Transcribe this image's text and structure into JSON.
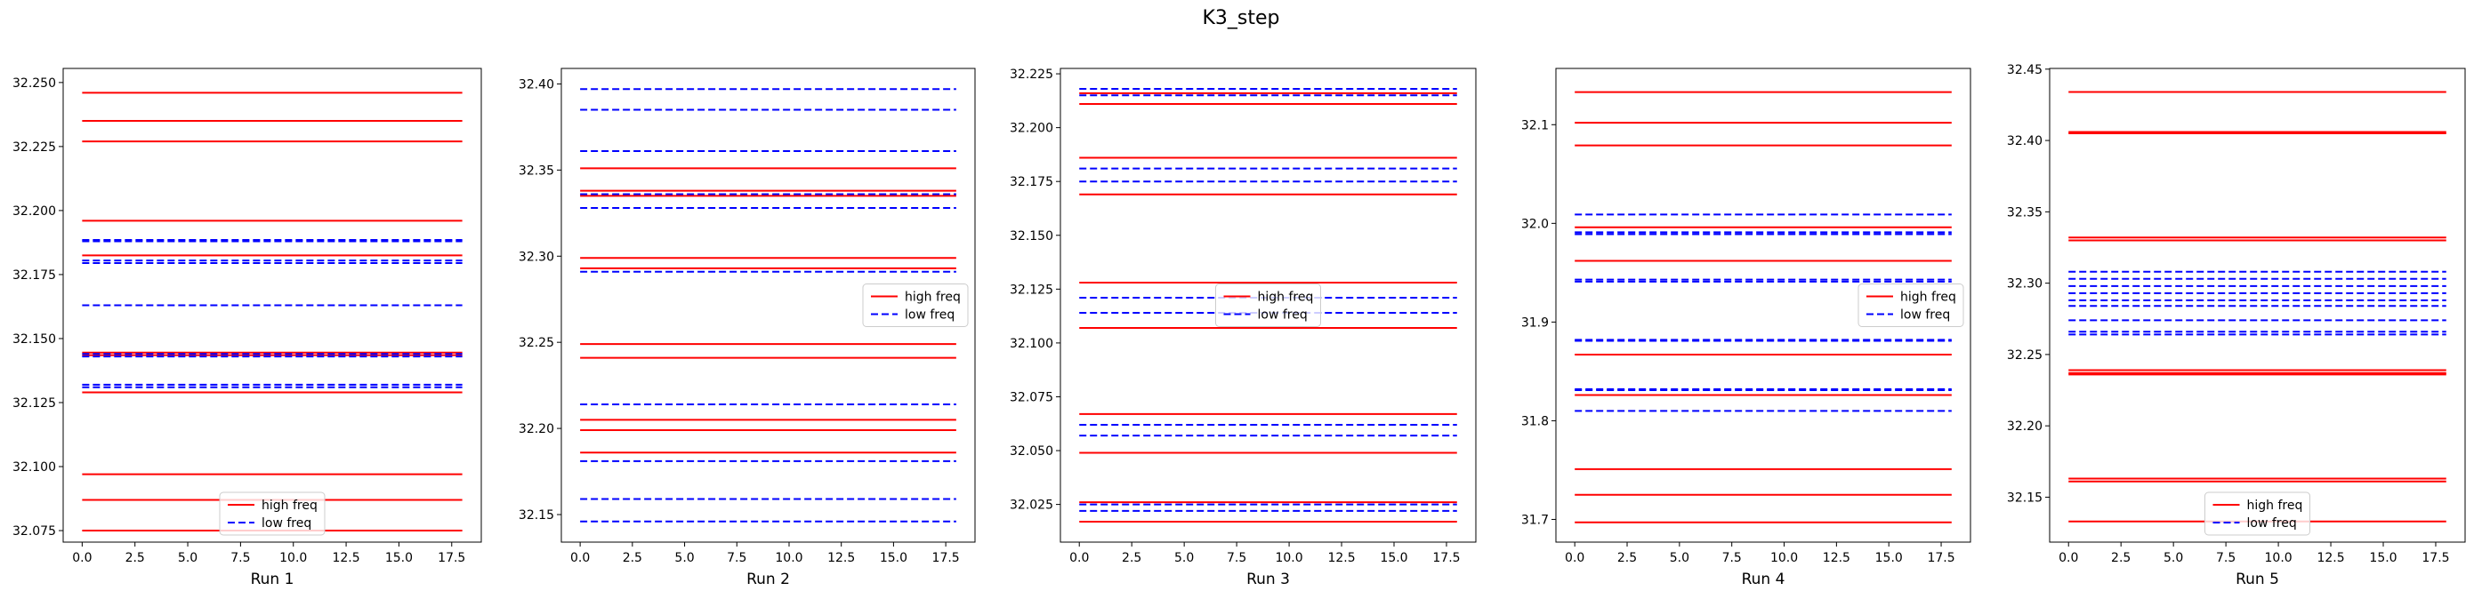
{
  "figure": {
    "suptitle": "K3_step"
  },
  "legend_labels": {
    "high": "high freq",
    "low": "low freq"
  },
  "colors": {
    "high": "#ff0000",
    "low": "#0000ff"
  },
  "chart_data": [
    {
      "type": "line",
      "xlabel": "Run 1",
      "xlim": [
        -0.9,
        18.9
      ],
      "ylim": [
        32.0705,
        32.2555
      ],
      "xticks": [
        0.0,
        2.5,
        5.0,
        7.5,
        10.0,
        12.5,
        15.0,
        17.5
      ],
      "xtick_labels": [
        "0.0",
        "2.5",
        "5.0",
        "7.5",
        "10.0",
        "12.5",
        "15.0",
        "17.5"
      ],
      "yticks": [
        32.075,
        32.1,
        32.125,
        32.15,
        32.175,
        32.2,
        32.225,
        32.25
      ],
      "ytick_labels": [
        "32.075",
        "32.100",
        "32.125",
        "32.150",
        "32.175",
        "32.200",
        "32.225",
        "32.250"
      ],
      "x_range": [
        0,
        18
      ],
      "legend_loc": "lower center",
      "series": [
        {
          "key": "high",
          "name": "high freq",
          "style": "solid",
          "levels": [
            32.246,
            32.235,
            32.227,
            32.196,
            32.1825,
            32.1445,
            32.1435,
            32.129,
            32.097,
            32.087,
            32.075
          ]
        },
        {
          "key": "low",
          "name": "low freq",
          "style": "dashed",
          "levels": [
            32.1885,
            32.188,
            32.1805,
            32.1795,
            32.163,
            32.144,
            32.143,
            32.132,
            32.131
          ]
        }
      ]
    },
    {
      "type": "line",
      "xlabel": "Run 2",
      "xlim": [
        -0.9,
        18.9
      ],
      "ylim": [
        32.134,
        32.409
      ],
      "xticks": [
        0.0,
        2.5,
        5.0,
        7.5,
        10.0,
        12.5,
        15.0,
        17.5
      ],
      "xtick_labels": [
        "0.0",
        "2.5",
        "5.0",
        "7.5",
        "10.0",
        "12.5",
        "15.0",
        "17.5"
      ],
      "yticks": [
        32.15,
        32.2,
        32.25,
        32.3,
        32.35,
        32.4
      ],
      "ytick_labels": [
        "32.15",
        "32.20",
        "32.25",
        "32.30",
        "32.35",
        "32.40"
      ],
      "x_range": [
        0,
        18
      ],
      "legend_loc": "center right",
      "series": [
        {
          "key": "high",
          "name": "high freq",
          "style": "solid",
          "levels": [
            32.351,
            32.338,
            32.335,
            32.299,
            32.293,
            32.249,
            32.241,
            32.205,
            32.199,
            32.186
          ]
        },
        {
          "key": "low",
          "name": "low freq",
          "style": "dashed",
          "levels": [
            32.397,
            32.385,
            32.361,
            32.336,
            32.328,
            32.291,
            32.214,
            32.181,
            32.159,
            32.146
          ]
        }
      ]
    },
    {
      "type": "line",
      "xlabel": "Run 3",
      "xlim": [
        -0.9,
        18.9
      ],
      "ylim": [
        32.0075,
        32.2275
      ],
      "xticks": [
        0.0,
        2.5,
        5.0,
        7.5,
        10.0,
        12.5,
        15.0,
        17.5
      ],
      "xtick_labels": [
        "0.0",
        "2.5",
        "5.0",
        "7.5",
        "10.0",
        "12.5",
        "15.0",
        "17.5"
      ],
      "yticks": [
        32.025,
        32.05,
        32.075,
        32.1,
        32.125,
        32.15,
        32.175,
        32.2,
        32.225
      ],
      "ytick_labels": [
        "32.025",
        "32.050",
        "32.075",
        "32.100",
        "32.125",
        "32.150",
        "32.175",
        "32.200",
        "32.225"
      ],
      "x_range": [
        0,
        18
      ],
      "legend_loc": "center",
      "series": [
        {
          "key": "high",
          "name": "high freq",
          "style": "solid",
          "levels": [
            32.216,
            32.211,
            32.186,
            32.169,
            32.128,
            32.107,
            32.067,
            32.049,
            32.026,
            32.017
          ]
        },
        {
          "key": "low",
          "name": "low freq",
          "style": "dashed",
          "levels": [
            32.218,
            32.215,
            32.181,
            32.175,
            32.121,
            32.114,
            32.062,
            32.057,
            32.025,
            32.022
          ]
        }
      ]
    },
    {
      "type": "line",
      "xlabel": "Run 4",
      "xlim": [
        -0.9,
        18.9
      ],
      "ylim": [
        31.677,
        32.157
      ],
      "xticks": [
        0.0,
        2.5,
        5.0,
        7.5,
        10.0,
        12.5,
        15.0,
        17.5
      ],
      "xtick_labels": [
        "0.0",
        "2.5",
        "5.0",
        "7.5",
        "10.0",
        "12.5",
        "15.0",
        "17.5"
      ],
      "yticks": [
        31.7,
        31.8,
        31.9,
        32.0,
        32.1
      ],
      "ytick_labels": [
        "31.7",
        "31.8",
        "31.9",
        "32.0",
        "32.1"
      ],
      "x_range": [
        0,
        18
      ],
      "legend_loc": "center right",
      "series": [
        {
          "key": "high",
          "name": "high freq",
          "style": "solid",
          "levels": [
            32.133,
            32.102,
            32.079,
            31.996,
            31.962,
            31.867,
            31.826,
            31.751,
            31.725,
            31.697
          ]
        },
        {
          "key": "low",
          "name": "low freq",
          "style": "dashed",
          "levels": [
            32.009,
            31.991,
            31.989,
            31.943,
            31.941,
            31.882,
            31.881,
            31.832,
            31.831,
            31.81
          ]
        }
      ]
    },
    {
      "type": "line",
      "xlabel": "Run 5",
      "xlim": [
        -0.9,
        18.9
      ],
      "ylim": [
        32.1185,
        32.4505
      ],
      "xticks": [
        0.0,
        2.5,
        5.0,
        7.5,
        10.0,
        12.5,
        15.0,
        17.5
      ],
      "xtick_labels": [
        "0.0",
        "2.5",
        "5.0",
        "7.5",
        "10.0",
        "12.5",
        "15.0",
        "17.5"
      ],
      "yticks": [
        32.15,
        32.2,
        32.25,
        32.3,
        32.35,
        32.4,
        32.45
      ],
      "ytick_labels": [
        "32.15",
        "32.20",
        "32.25",
        "32.30",
        "32.35",
        "32.40",
        "32.45"
      ],
      "x_range": [
        0,
        18
      ],
      "legend_loc": "lower center",
      "series": [
        {
          "key": "high",
          "name": "high freq",
          "style": "solid",
          "levels": [
            32.434,
            32.406,
            32.405,
            32.332,
            32.33,
            32.239,
            32.237,
            32.236,
            32.163,
            32.161,
            32.133
          ]
        },
        {
          "key": "low",
          "name": "low freq",
          "style": "dashed",
          "levels": [
            32.308,
            32.303,
            32.298,
            32.293,
            32.288,
            32.284,
            32.274,
            32.266,
            32.264
          ]
        }
      ]
    }
  ]
}
